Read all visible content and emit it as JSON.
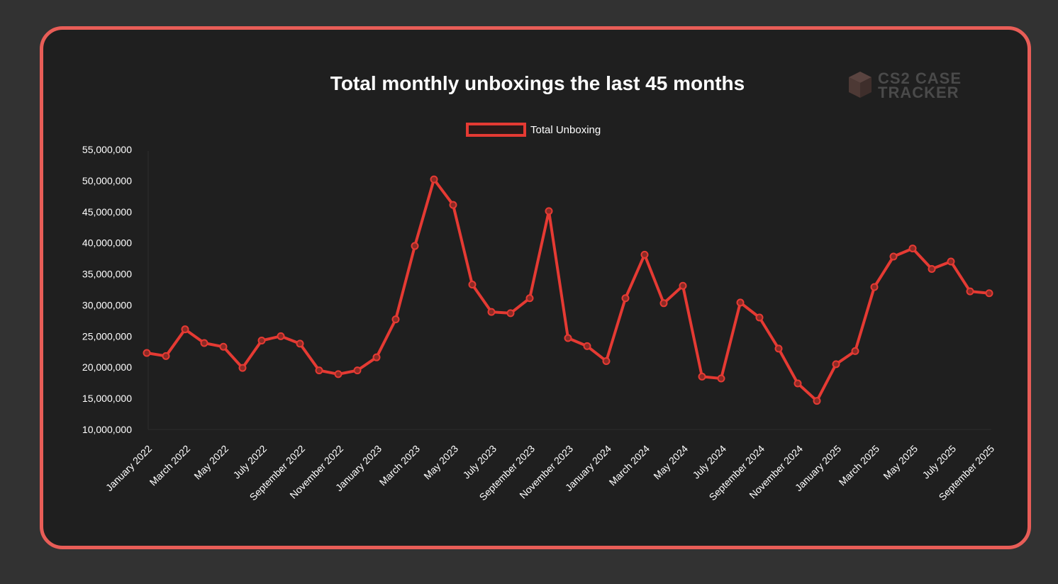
{
  "chart_data": {
    "type": "line",
    "title": "Total monthly unboxings the last 45 months",
    "legend": "Total Unboxing",
    "legend_position": "top-center",
    "watermark": [
      "CS2 CASE",
      "TRACKER"
    ],
    "colors": {
      "line": "#e53a33",
      "card_border": "#e85d57",
      "card_bg": "#1f1f1f",
      "page_bg": "#323232"
    },
    "ylim": [
      10000000,
      55000000
    ],
    "yticks": [
      10000000,
      15000000,
      20000000,
      25000000,
      30000000,
      35000000,
      40000000,
      45000000,
      50000000,
      55000000
    ],
    "ytick_labels": [
      "10,000,000",
      "15,000,000",
      "20,000,000",
      "25,000,000",
      "30,000,000",
      "35,000,000",
      "40,000,000",
      "45,000,000",
      "50,000,000",
      "55,000,000"
    ],
    "xtick_labels": [
      "January 2022",
      "March 2022",
      "May 2022",
      "July 2022",
      "September 2022",
      "November 2022",
      "January 2023",
      "March 2023",
      "May 2023",
      "July 2023",
      "September 2023",
      "November 2023",
      "January 2024",
      "March 2024",
      "May 2024",
      "July 2024",
      "September 2024",
      "November 2024",
      "January 2025",
      "March 2025",
      "May 2025",
      "July 2025",
      "September 2025"
    ],
    "xtick_every": 2,
    "x": [
      "Jan 2022",
      "Feb 2022",
      "Mar 2022",
      "Apr 2022",
      "May 2022",
      "Jun 2022",
      "Jul 2022",
      "Aug 2022",
      "Sep 2022",
      "Oct 2022",
      "Nov 2022",
      "Dec 2022",
      "Jan 2023",
      "Feb 2023",
      "Mar 2023",
      "Apr 2023",
      "May 2023",
      "Jun 2023",
      "Jul 2023",
      "Aug 2023",
      "Sep 2023",
      "Oct 2023",
      "Nov 2023",
      "Dec 2023",
      "Jan 2024",
      "Feb 2024",
      "Mar 2024",
      "Apr 2024",
      "May 2024",
      "Jun 2024",
      "Jul 2024",
      "Aug 2024",
      "Sep 2024",
      "Oct 2024",
      "Nov 2024",
      "Dec 2024",
      "Jan 2025",
      "Feb 2025",
      "Mar 2025",
      "Apr 2025",
      "May 2025",
      "Jun 2025",
      "Jul 2025",
      "Aug 2025",
      "Sep 2025"
    ],
    "series": [
      {
        "name": "Total Unboxing",
        "values": [
          22300000,
          21800000,
          26100000,
          23900000,
          23300000,
          19900000,
          24300000,
          25000000,
          23800000,
          19500000,
          18900000,
          19500000,
          21600000,
          27700000,
          39500000,
          50200000,
          46100000,
          33300000,
          28900000,
          28700000,
          31100000,
          45100000,
          24700000,
          23400000,
          21000000,
          31100000,
          38100000,
          30300000,
          33100000,
          18500000,
          18200000,
          30400000,
          28000000,
          23000000,
          17400000,
          14600000,
          20500000,
          22600000,
          32900000,
          37800000,
          39100000,
          35800000,
          37000000,
          32200000,
          31900000
        ]
      }
    ]
  }
}
